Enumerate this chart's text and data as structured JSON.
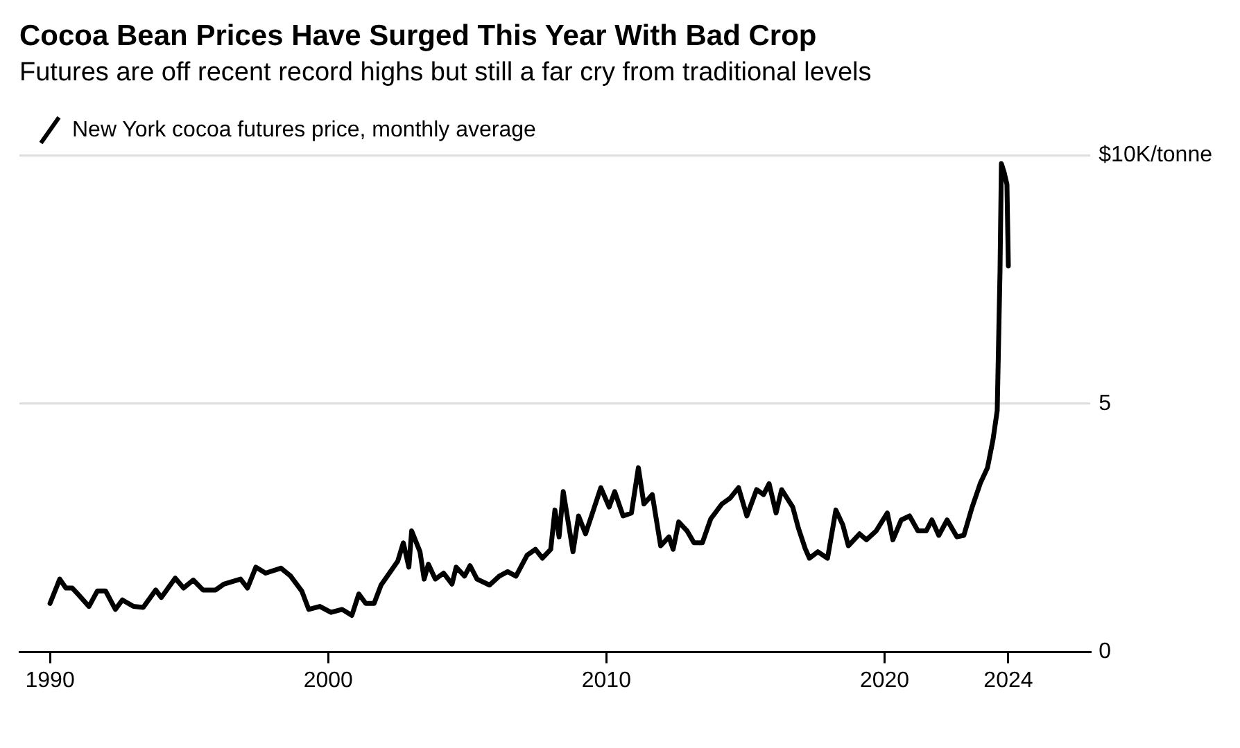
{
  "chart_data": {
    "type": "line",
    "title": "Cocoa Bean Prices Have Surged This Year With Bad Crop",
    "subtitle": "Futures are off recent record highs but still a far cry from traditional levels",
    "legend": "top left",
    "grid": "y",
    "marker": "none",
    "line_style": "solid",
    "xlim": [
      1988.9,
      2027.4
    ],
    "xticks": [
      1990,
      2000,
      2010,
      2020,
      {
        "value": 2024.45,
        "label": "2024"
      }
    ],
    "ylim": [
      0,
      10
    ],
    "yticks": [
      0,
      5,
      {
        "value": 10,
        "label": "$10K/tonne"
      }
    ],
    "series": [
      {
        "name": "New York cocoa futures price, monthly average",
        "color": "#000000",
        "x": [
          1990.0,
          1990.35,
          1990.57,
          1990.8,
          1991.0,
          1991.4,
          1991.7,
          1992.0,
          1992.35,
          1992.6,
          1993.0,
          1993.35,
          1993.8,
          1994.0,
          1994.5,
          1994.8,
          1995.15,
          1995.5,
          1995.95,
          1996.25,
          1996.85,
          1997.1,
          1997.4,
          1997.75,
          1998.3,
          1998.65,
          1999.05,
          1999.3,
          1999.7,
          2000.1,
          2000.5,
          2000.85,
          2001.1,
          2001.35,
          2001.65,
          2001.9,
          2002.2,
          2002.5,
          2002.7,
          2002.9,
          2003.0,
          2003.3,
          2003.45,
          2003.6,
          2003.85,
          2004.15,
          2004.45,
          2004.6,
          2004.9,
          2005.1,
          2005.35,
          2005.8,
          2006.15,
          2006.45,
          2006.75,
          2007.15,
          2007.45,
          2007.7,
          2008.0,
          2008.15,
          2008.3,
          2008.45,
          2008.8,
          2009.0,
          2009.25,
          2009.5,
          2009.8,
          2010.1,
          2010.3,
          2010.6,
          2010.9,
          2011.15,
          2011.35,
          2011.65,
          2011.95,
          2012.25,
          2012.4,
          2012.6,
          2012.9,
          2013.15,
          2013.45,
          2013.75,
          2014.15,
          2014.45,
          2014.75,
          2015.05,
          2015.4,
          2015.65,
          2015.85,
          2016.1,
          2016.3,
          2016.7,
          2016.9,
          2017.15,
          2017.3,
          2017.6,
          2017.95,
          2018.25,
          2018.5,
          2018.7,
          2019.1,
          2019.35,
          2019.7,
          2020.1,
          2020.3,
          2020.6,
          2020.9,
          2021.2,
          2021.5,
          2021.7,
          2021.95,
          2022.25,
          2022.6,
          2022.85,
          2023.15,
          2023.45,
          2023.7,
          2023.9,
          2024.05,
          2024.15,
          2024.2,
          2024.3,
          2024.4,
          2024.45
        ],
        "values": [
          0.98,
          1.47,
          1.29,
          1.29,
          1.17,
          0.92,
          1.23,
          1.23,
          0.86,
          1.05,
          0.92,
          0.9,
          1.25,
          1.1,
          1.49,
          1.29,
          1.45,
          1.25,
          1.25,
          1.37,
          1.47,
          1.29,
          1.71,
          1.59,
          1.69,
          1.53,
          1.23,
          0.86,
          0.92,
          0.8,
          0.86,
          0.74,
          1.17,
          0.98,
          0.98,
          1.35,
          1.59,
          1.83,
          2.2,
          1.71,
          2.44,
          2.02,
          1.47,
          1.77,
          1.47,
          1.59,
          1.37,
          1.71,
          1.53,
          1.74,
          1.47,
          1.35,
          1.53,
          1.62,
          1.53,
          1.95,
          2.07,
          1.89,
          2.07,
          2.86,
          2.32,
          3.23,
          2.02,
          2.74,
          2.38,
          2.8,
          3.31,
          2.92,
          3.23,
          2.74,
          2.8,
          3.71,
          2.98,
          3.17,
          2.14,
          2.32,
          2.07,
          2.62,
          2.44,
          2.2,
          2.2,
          2.68,
          2.98,
          3.1,
          3.31,
          2.74,
          3.27,
          3.17,
          3.39,
          2.8,
          3.27,
          2.92,
          2.5,
          2.08,
          1.89,
          2.02,
          1.89,
          2.86,
          2.56,
          2.14,
          2.38,
          2.26,
          2.44,
          2.8,
          2.26,
          2.66,
          2.74,
          2.44,
          2.44,
          2.66,
          2.35,
          2.66,
          2.32,
          2.35,
          2.92,
          3.41,
          3.71,
          4.28,
          4.86,
          7.65,
          9.83,
          9.65,
          9.41,
          7.77
        ]
      }
    ]
  }
}
